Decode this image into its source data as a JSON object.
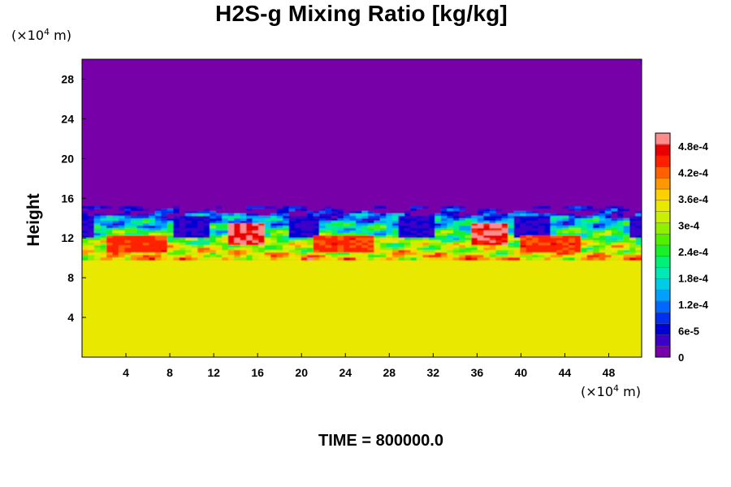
{
  "chart_data": {
    "type": "heatmap",
    "title": "H2S-g Mixing Ratio [kg/kg]",
    "ylabel": "Height",
    "x_unit_prefix": "(×10",
    "x_unit_exponent": "4",
    "x_unit_suffix": " m)",
    "y_unit_prefix": "(×10",
    "y_unit_exponent": "4",
    "y_unit_suffix": " m)",
    "xlim": [
      0,
      51
    ],
    "ylim": [
      0,
      30
    ],
    "x_ticks": [
      4,
      8,
      12,
      16,
      20,
      24,
      28,
      32,
      36,
      40,
      44,
      48
    ],
    "y_ticks": [
      4,
      8,
      12,
      16,
      20,
      24,
      28
    ],
    "field_regions": {
      "upper_value": 0,
      "lower_value": 0.00035,
      "mixing_layer_bottom": 9.8,
      "mixing_layer_top": 15.2,
      "peak_value": 0.00051,
      "peak_locations_x": [
        15,
        37
      ]
    },
    "colorbar": {
      "min": 0,
      "max": 0.00051,
      "tick_values": [
        0,
        6e-05,
        0.00012,
        0.00018,
        0.00024,
        0.0003,
        0.00036,
        0.00042,
        0.00048
      ],
      "tick_labels": [
        "0",
        "6e-5",
        "1.2e-4",
        "1.8e-4",
        "2.4e-4",
        "3e-4",
        "3.6e-4",
        "4.2e-4",
        "4.8e-4"
      ],
      "colors": [
        "#7800a8",
        "#3c00c8",
        "#0000d4",
        "#0030ee",
        "#0068ff",
        "#00a0ff",
        "#00cce8",
        "#00e8b4",
        "#00f078",
        "#18f028",
        "#50f000",
        "#90f000",
        "#c8f000",
        "#e8e800",
        "#ffd000",
        "#ff9800",
        "#ff6000",
        "#ff2000",
        "#e80000",
        "#ff8c8c"
      ]
    }
  },
  "time_label": "TIME = 800000.0"
}
